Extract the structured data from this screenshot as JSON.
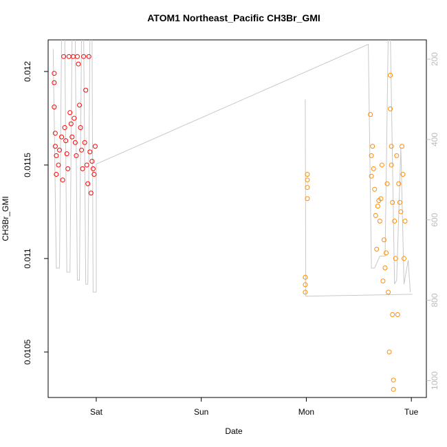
{
  "chart_data": {
    "type": "scatter",
    "title": "ATOM1 Northeast_Pacific CH3Br_GMI",
    "x_label": "Date",
    "y_label": "CH3Br_GMI",
    "xlim": [
      -0.458,
      3.143
    ],
    "xticks": [
      {
        "value": 0,
        "label": "Sat"
      },
      {
        "value": 1,
        "label": "Sun"
      },
      {
        "value": 2,
        "label": "Mon"
      },
      {
        "value": 3,
        "label": "Tue"
      }
    ],
    "ylim": [
      0.010257,
      0.012169
    ],
    "yticks": [
      0.0105,
      0.011,
      0.0115,
      0.012
    ],
    "y2lim": [
      1042,
      152
    ],
    "y2ticks": [
      200,
      400,
      600,
      800,
      1000
    ],
    "series": [
      {
        "color": "#ff0000",
        "x": [
          -0.4,
          -0.4,
          -0.4,
          -0.39,
          -0.39,
          -0.38,
          -0.38,
          -0.36,
          -0.35,
          -0.33,
          -0.32,
          -0.31,
          -0.3,
          -0.29,
          -0.28,
          -0.27,
          -0.26,
          -0.25,
          -0.24,
          -0.23,
          -0.22,
          -0.21,
          -0.2,
          -0.19,
          -0.18,
          -0.17,
          -0.16,
          -0.15,
          -0.14,
          -0.13,
          -0.12,
          -0.11,
          -0.1,
          -0.09,
          -0.08,
          -0.07,
          -0.06,
          -0.05,
          -0.04,
          -0.03,
          -0.02,
          -0.01
        ],
        "values": [
          0.01199,
          0.01194,
          0.01181,
          0.01167,
          0.0116,
          0.01155,
          0.01145,
          0.0115,
          0.01158,
          0.01165,
          0.01142,
          0.01208,
          0.0117,
          0.01163,
          0.01156,
          0.01148,
          0.01208,
          0.01178,
          0.01172,
          0.01165,
          0.01208,
          0.01175,
          0.01162,
          0.01155,
          0.01208,
          0.01204,
          0.01182,
          0.0117,
          0.01158,
          0.01148,
          0.01208,
          0.01162,
          0.0119,
          0.0115,
          0.0114,
          0.01208,
          0.01157,
          0.01135,
          0.01152,
          0.01148,
          0.01145,
          0.0116
        ]
      },
      {
        "color": "#ff8c00",
        "x": [
          1.99,
          1.99,
          1.99,
          2.01,
          2.01,
          2.01,
          2.01,
          2.61,
          2.62,
          2.62,
          2.63,
          2.64,
          2.65,
          2.66,
          2.67,
          2.68,
          2.69,
          2.7,
          2.71,
          2.72,
          2.73,
          2.74,
          2.75,
          2.76,
          2.77,
          2.78,
          2.79,
          2.8,
          2.8,
          2.81,
          2.81,
          2.82,
          2.82,
          2.83,
          2.83,
          2.84,
          2.85,
          2.86,
          2.87,
          2.88,
          2.89,
          2.9,
          2.91,
          2.92,
          2.93,
          2.94
        ],
        "values": [
          0.0109,
          0.01086,
          0.01082,
          0.01145,
          0.01142,
          0.01138,
          0.01132,
          0.01177,
          0.01155,
          0.01144,
          0.0116,
          0.01148,
          0.01137,
          0.01123,
          0.01105,
          0.01128,
          0.01131,
          0.0112,
          0.01132,
          0.0115,
          0.01088,
          0.0111,
          0.01095,
          0.01103,
          0.0114,
          0.01082,
          0.0105,
          0.01198,
          0.0118,
          0.0116,
          0.0115,
          0.0113,
          0.0107,
          0.01035,
          0.0103,
          0.0112,
          0.011,
          0.01155,
          0.0107,
          0.0114,
          0.0113,
          0.01125,
          0.0116,
          0.01145,
          0.011,
          0.0112
        ]
      },
      {
        "type": "line",
        "axis": "y2",
        "color": "#c8c8c8",
        "x": [
          -0.41,
          -0.38,
          -0.35,
          -0.33,
          -0.3,
          -0.28,
          -0.25,
          -0.23,
          -0.2,
          -0.18,
          -0.16,
          -0.14,
          -0.12,
          -0.1,
          -0.08,
          -0.06,
          -0.04,
          -0.03,
          0.0,
          0.0,
          2.59,
          2.62,
          2.65,
          2.7,
          2.75,
          2.78,
          2.8,
          2.84,
          2.86,
          2.9,
          2.93,
          2.97,
          2.99,
          null,
          1.99,
          1.995,
          3.01
        ],
        "values": [
          175,
          720,
          720,
          140,
          140,
          730,
          730,
          140,
          140,
          750,
          750,
          140,
          140,
          760,
          760,
          140,
          140,
          780,
          780,
          461,
          163,
          720,
          720,
          690,
          690,
          140,
          140,
          760,
          750,
          420,
          760,
          700,
          780,
          null,
          300,
          790,
          785
        ]
      }
    ]
  }
}
